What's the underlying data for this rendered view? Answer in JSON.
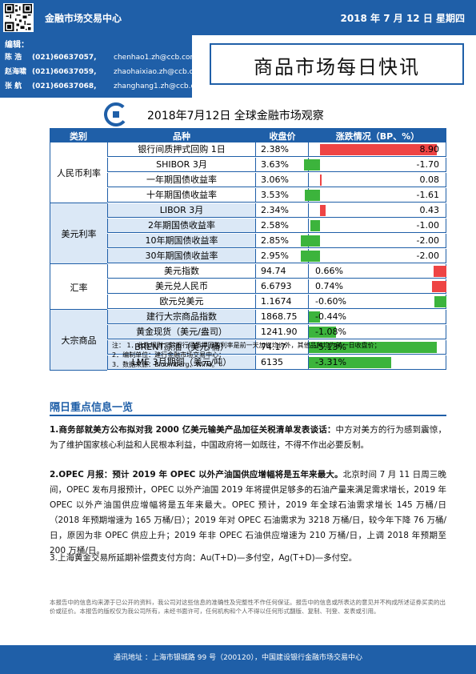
{
  "header": {
    "org_name": "金融市场交易中心",
    "date": "2018 年 7 月 12 日  星期四"
  },
  "editors": {
    "title": "编辑：",
    "people": [
      {
        "name": "陈  浩",
        "phone": "(021)60637057,",
        "email": "chenhao1.zh@ccb.com"
      },
      {
        "name": "赵海啸",
        "phone": "(021)60637059,",
        "email": "zhaohaixiao.zh@ccb.com"
      },
      {
        "name": "张  航",
        "phone": "(021)60637068,",
        "email": "zhanghang1.zh@ccb.com"
      }
    ]
  },
  "main_title": "商品市场每日快讯",
  "table": {
    "title": "2018年7月12日  全球金融市场观察",
    "headers": {
      "category": "类别",
      "name": "品种",
      "price": "收盘价",
      "change": "涨跌情况（BP、%）"
    },
    "groups": [
      {
        "category": "人民币利率",
        "unit": "bp",
        "rows": [
          {
            "name": "银行间质押式回购 1日",
            "price": "2.38%",
            "change": 8.9,
            "change_label": "8.90"
          },
          {
            "name": "SHIBOR 3月",
            "price": "3.63%",
            "change": -1.7,
            "change_label": "-1.70"
          },
          {
            "name": "一年期国债收益率",
            "price": "3.06%",
            "change": 0.08,
            "change_label": "0.08"
          },
          {
            "name": "十年期国债收益率",
            "price": "3.53%",
            "change": -1.61,
            "change_label": "-1.61"
          }
        ]
      },
      {
        "category": "美元利率",
        "unit": "bp",
        "rows": [
          {
            "name": "LIBOR 3月",
            "price": "2.34%",
            "change": 0.43,
            "change_label": "0.43"
          },
          {
            "name": "2年期国债收益率",
            "price": "2.58%",
            "change": -1.0,
            "change_label": "-1.00"
          },
          {
            "name": "10年期国债收益率",
            "price": "2.85%",
            "change": -2.0,
            "change_label": "-2.00"
          },
          {
            "name": "30年期国债收益率",
            "price": "2.95%",
            "change": -2.0,
            "change_label": "-2.00"
          }
        ]
      },
      {
        "category": "汇率",
        "unit": "pct",
        "rows": [
          {
            "name": "美元指数",
            "price": "94.74",
            "change": 0.66,
            "change_label": "0.66%"
          },
          {
            "name": "美元兑人民币",
            "price": "6.6793",
            "change": 0.74,
            "change_label": "0.74%"
          },
          {
            "name": "欧元兑美元",
            "price": "1.1674",
            "change": -0.6,
            "change_label": "-0.60%"
          }
        ]
      },
      {
        "category": "大宗商品",
        "unit": "pct",
        "rows": [
          {
            "name": "建行大宗商品指数",
            "price": "1868.75",
            "change": -0.44,
            "change_label": "-0.44%"
          },
          {
            "name": "黄金现货（美元/盎司）",
            "price": "1241.90",
            "change": -1.08,
            "change_label": "-1.08%"
          },
          {
            "name": "BRENT原油（美元/桶）",
            "price": "74.17",
            "change": -5.13,
            "change_label": "-5.13%"
          },
          {
            "name": "LME 3月期铜（美元/吨）",
            "price": "6135",
            "change": -3.31,
            "change_label": "-3.31%"
          }
        ]
      }
    ],
    "notes": [
      "注：  1．收数规则：除银行间质押回购利率是前一天加权均价外，其他品种均为前一日收盘价；",
      "        2．编制单位：建行金融市场交易中心；",
      "        3．数据来源：Bloomberg、Wind。"
    ]
  },
  "section": {
    "title": "隔日重点信息一览",
    "items": [
      {
        "lead": "1.商务部就美方公布拟对我 2000 亿美元输美产品加征关税清单发表谈话：",
        "body": "中方对美方的行为感到震惊，为了维护国家核心利益和人民根本利益，中国政府将一如既往，不得不作出必要反制。"
      },
      {
        "lead": "2.OPEC 月报：预计 2019 年 OPEC 以外产油国供应增幅将是五年来最大。",
        "body": "北京时间 7 月 11 日周三晚间，OPEC 发布月报预计，OPEC 以外产油国 2019 年将提供足够多的石油产量来满足需求增长，2019 年 OPEC 以外产油国供应增幅将是五年来最大。OPEC 预计，2019 年全球石油需求增长 145 万桶/日（2018 年预期增速为 165 万桶/日）；2019 年对 OPEC 石油需求为 3218 万桶/日，较今年下降 76 万桶/日，原因为非 OPEC 供应上升；2019 年非 OPEC 石油供应增速为 210 万桶/日，上调 2018 年预期至 200 万桶/日。"
      },
      {
        "lead": "",
        "body": "3.上海黄金交易所延期补偿费支付方向：Au(T+D)—多付空，Ag(T+D)—多付空。"
      }
    ]
  },
  "disclaimer": "本报告中的信息均来源于已公开的资料，我公司对这些信息的准确性及完整性不作任何保证。报告中的信息或所表达的意见并不构成所述证券买卖的出价或征价。本报告的版权仅为我公司所有，未经书面许可，任何机构和个人不得以任何形式翻版、复制、刊登、发表或引用。",
  "footer": {
    "address": "通讯地址  ：上海市银城路 99 号（200120），中国建设银行金融市场交易中心"
  },
  "colors": {
    "brand_blue": "#1f5fa8",
    "row_shade": "#dbe8f6",
    "up_red": "#ee4444",
    "down_green": "#3cb43c"
  },
  "icons": {
    "qr": "qr-code-icon",
    "logo": "ccb-logo-icon"
  }
}
